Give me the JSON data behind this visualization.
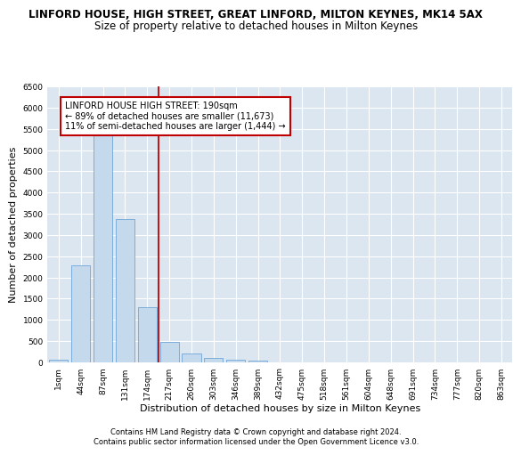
{
  "title": "LINFORD HOUSE, HIGH STREET, GREAT LINFORD, MILTON KEYNES, MK14 5AX",
  "subtitle": "Size of property relative to detached houses in Milton Keynes",
  "xlabel": "Distribution of detached houses by size in Milton Keynes",
  "ylabel": "Number of detached properties",
  "bar_color": "#c5d9ed",
  "bar_edge_color": "#5b9bd5",
  "background_color": "#dce6f1",
  "grid_color": "#ffffff",
  "categories": [
    "1sqm",
    "44sqm",
    "87sqm",
    "131sqm",
    "174sqm",
    "217sqm",
    "260sqm",
    "303sqm",
    "346sqm",
    "389sqm",
    "432sqm",
    "475sqm",
    "518sqm",
    "561sqm",
    "604sqm",
    "648sqm",
    "691sqm",
    "734sqm",
    "777sqm",
    "820sqm",
    "863sqm"
  ],
  "values": [
    70,
    2280,
    5400,
    3380,
    1310,
    480,
    200,
    105,
    60,
    40,
    0,
    0,
    0,
    0,
    0,
    0,
    0,
    0,
    0,
    0,
    0
  ],
  "ylim": [
    0,
    6500
  ],
  "yticks": [
    0,
    500,
    1000,
    1500,
    2000,
    2500,
    3000,
    3500,
    4000,
    4500,
    5000,
    5500,
    6000,
    6500
  ],
  "vline_x": 4.5,
  "vline_color": "#c00000",
  "annotation_text": "LINFORD HOUSE HIGH STREET: 190sqm\n← 89% of detached houses are smaller (11,673)\n11% of semi-detached houses are larger (1,444) →",
  "footnote1": "Contains HM Land Registry data © Crown copyright and database right 2024.",
  "footnote2": "Contains public sector information licensed under the Open Government Licence v3.0.",
  "title_fontsize": 8.5,
  "subtitle_fontsize": 8.5,
  "axis_label_fontsize": 8,
  "tick_fontsize": 6.5,
  "annotation_fontsize": 7,
  "footnote_fontsize": 6
}
